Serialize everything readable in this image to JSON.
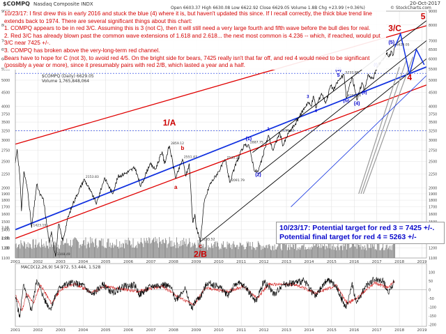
{
  "header": {
    "symbol": "$COMPQ",
    "name": "Nasdaq Composite INDX",
    "date": "20-Oct-2017",
    "source": "© StockCharts.com",
    "ohlc": "Open 6603.37  High 6630.08  Low 6622.92  Close 6629.05  Volume 1.8B  Chg +23.99 (+0.36%)",
    "legend_price": "$COMPQ (Daily) 6629.05",
    "legend_volume": "Volume 1,765,848,064",
    "legend_macd": "MACD(12,26,9) 54.972, 53.444, 1.528"
  },
  "annotation_text": [
    "10/23/17:  I first drew this in early 2016 and stuck the blue (4) where it is, but haven't updated this since.  If I recall correctly, the thick blue trend line extends back to 1974.  There are several significant things about this chart:",
    "1.  COMPQ appears to be in red 3/C.  Assuming this is 3 (not C), then it will still need a very large fourth and fifth wave before the bull dies for real.",
    "2.  Red 3/C has already blown past the common wave extensions of 1.618 and 2.618... the next most common is 4.236 -- which, if reached, would put 3/C near 7425 +/-.",
    "3.  COMPQ has broken above the very-long-term red channel.",
    "Bears have to hope for C (not 3), to avoid red 4/5.  On the bright side for bears, 7425 really isn't that far off, and red 4 would need to be significant (possibly a year or more), since it presumably pairs with red 2/B, which lasted a year and a half."
  ],
  "target_text": [
    "10/23/17:  Potential target for red 3 = 7425 +/-.",
    "Potential final target for red 4 = 5263 +/-"
  ],
  "colors": {
    "price": "#000000",
    "red_label": "#cc0000",
    "blue_label": "#0000cc",
    "red_channel": "#e00000",
    "blue_trend": "#1030e0",
    "black_channel": "#000000",
    "gray_lines": "#9a9a9a",
    "volume": "#8a8a8a",
    "macd": "#000000",
    "macd_signal": "#cc0000"
  },
  "chart_data": [
    {
      "type": "line",
      "title": "",
      "scale": "log",
      "x_range": [
        2001.0,
        2019.2
      ],
      "y_range": [
        1100,
        9000
      ],
      "y_ticks": [
        1100,
        1200,
        1300,
        1400,
        1500,
        1600,
        1700,
        1800,
        1900,
        2000,
        2250,
        2500,
        2750,
        3000,
        3250,
        3500,
        3750,
        4000,
        4500,
        5000,
        5500,
        6000,
        6500,
        7000,
        8000,
        9000
      ],
      "x_ticks": [
        "2001",
        "2002",
        "2003",
        "2004",
        "2005",
        "2006",
        "2007",
        "2008",
        "2009",
        "2010",
        "2011",
        "2012",
        "2013",
        "2014",
        "2015",
        "2016",
        "2017",
        "2018",
        "2019"
      ],
      "grid": true,
      "series": [
        {
          "points": [
            [
              2001.0,
              2470
            ],
            [
              2001.08,
              2780
            ],
            [
              2001.2,
              2200
            ],
            [
              2001.27,
              1640
            ],
            [
              2001.38,
              2300
            ],
            [
              2001.55,
              1950
            ],
            [
              2001.72,
              1423
            ],
            [
              2001.95,
              2060
            ],
            [
              2002.08,
              1900
            ],
            [
              2002.25,
              1800
            ],
            [
              2002.5,
              1250
            ],
            [
              2002.6,
              1380
            ],
            [
              2002.78,
              1114
            ],
            [
              2002.92,
              1470
            ],
            [
              2003.1,
              1270
            ],
            [
              2003.3,
              1520
            ],
            [
              2003.55,
              1750
            ],
            [
              2004.05,
              2153
            ],
            [
              2004.3,
              1960
            ],
            [
              2004.6,
              1750
            ],
            [
              2004.95,
              2180
            ],
            [
              2005.3,
              1900
            ],
            [
              2005.55,
              2200
            ],
            [
              2005.9,
              2270
            ],
            [
              2006.3,
              2370
            ],
            [
              2006.55,
              2020
            ],
            [
              2006.95,
              2450
            ],
            [
              2007.2,
              2340
            ],
            [
              2007.5,
              2724
            ],
            [
              2007.6,
              2450
            ],
            [
              2007.82,
              2861
            ],
            [
              2008.1,
              2170
            ],
            [
              2008.4,
              2550
            ],
            [
              2008.55,
              2210
            ],
            [
              2008.7,
              2450
            ],
            [
              2008.85,
              1490
            ],
            [
              2008.95,
              1600
            ],
            [
              2009.0,
              1440
            ],
            [
              2009.19,
              1266
            ],
            [
              2009.35,
              1750
            ],
            [
              2009.6,
              2050
            ],
            [
              2010.0,
              2300
            ],
            [
              2010.3,
              2535
            ],
            [
              2010.5,
              2091
            ],
            [
              2010.8,
              2500
            ],
            [
              2011.1,
              2840
            ],
            [
              2011.33,
              2887
            ],
            [
              2011.6,
              2300
            ],
            [
              2011.75,
              2298
            ],
            [
              2011.95,
              2600
            ],
            [
              2012.2,
              3130
            ],
            [
              2012.4,
              2750
            ],
            [
              2012.7,
              3196
            ],
            [
              2012.85,
              2860
            ],
            [
              2013.1,
              3200
            ],
            [
              2013.4,
              3450
            ],
            [
              2013.6,
              3700
            ],
            [
              2013.95,
              4150
            ],
            [
              2014.1,
              4000
            ],
            [
              2014.2,
              4370
            ],
            [
              2014.3,
              3950
            ],
            [
              2014.55,
              4480
            ],
            [
              2014.75,
              4130
            ],
            [
              2014.95,
              4780
            ],
            [
              2015.1,
              4630
            ],
            [
              2015.3,
              4980
            ],
            [
              2015.55,
              5232
            ],
            [
              2015.65,
              4292
            ],
            [
              2015.9,
              5150
            ],
            [
              2016.1,
              4400
            ],
            [
              2016.12,
              4210
            ],
            [
              2016.35,
              4900
            ],
            [
              2016.45,
              4600
            ],
            [
              2016.6,
              5200
            ],
            [
              2016.85,
              5050
            ],
            [
              2016.95,
              5450
            ],
            [
              2017.2,
              5900
            ],
            [
              2017.35,
              6050
            ],
            [
              2017.45,
              6350
            ],
            [
              2017.55,
              6100
            ],
            [
              2017.65,
              6400
            ],
            [
              2017.72,
              6180
            ],
            [
              2017.8,
              6629
            ]
          ]
        }
      ]
    },
    {
      "type": "bar",
      "title": "",
      "scale": "linear",
      "y_ticks": [
        1.0,
        2.0,
        3.0
      ],
      "y_tick_labels": [
        "1.0B",
        "2.0B",
        "3.0B"
      ],
      "y_range": [
        0,
        3.6
      ]
    },
    {
      "type": "line",
      "title": "",
      "scale": "linear",
      "y_range": [
        -210,
        150
      ],
      "y_ticks": [
        -200,
        -150,
        -100,
        -50,
        0,
        50,
        100
      ]
    }
  ],
  "wave_labels": [
    {
      "text": "1/A",
      "x": 2007.82,
      "y": 3400,
      "color": "red",
      "size": 12
    },
    {
      "text": "b",
      "x": 2008.4,
      "y": 2760,
      "color": "red",
      "size": 8
    },
    {
      "text": "a",
      "x": 2008.1,
      "y": 1980,
      "color": "red",
      "size": 8
    },
    {
      "text": "c",
      "x": 2009.19,
      "y": 1200,
      "color": "red",
      "size": 8
    },
    {
      "text": "2/B",
      "x": 2009.19,
      "y": 1110,
      "color": "red",
      "size": 12
    },
    {
      "text": "3/C",
      "x": 2017.8,
      "y": 7600,
      "color": "red",
      "size": 12
    },
    {
      "text": "4",
      "x": 2018.45,
      "y": 5000,
      "color": "red",
      "size": 12
    },
    {
      "text": "5",
      "x": 2019.05,
      "y": 8400,
      "color": "red",
      "size": 12
    },
    {
      "text": "(1)",
      "x": 2011.33,
      "y": 3000,
      "color": "blue",
      "size": 7
    },
    {
      "text": "(2)",
      "x": 2011.75,
      "y": 2210,
      "color": "blue",
      "size": 7
    },
    {
      "text": "(3)",
      "x": 2015.3,
      "y": 5400,
      "color": "blue",
      "size": 7
    },
    {
      "text": "5",
      "x": 2015.3,
      "y": 5150,
      "color": "blue",
      "size": 7
    },
    {
      "text": "(4)",
      "x": 2016.12,
      "y": 4050,
      "color": "blue",
      "size": 7
    },
    {
      "text": "(5)",
      "x": 2017.65,
      "y": 6800,
      "color": "blue",
      "size": 7
    },
    {
      "text": "(i)",
      "x": 2016.95,
      "y": 5650,
      "color": "blue",
      "size": 6
    },
    {
      "text": "(ii)",
      "x": 2016.45,
      "y": 4450,
      "color": "blue",
      "size": 6
    },
    {
      "text": "(iv)",
      "x": 2015.65,
      "y": 4150,
      "color": "blue",
      "size": 6
    },
    {
      "text": "1",
      "x": 2012.2,
      "y": 3260,
      "color": "blue",
      "size": 6
    },
    {
      "text": "3",
      "x": 2013.95,
      "y": 4300,
      "color": "blue",
      "size": 6
    },
    {
      "text": "4",
      "x": 2014.3,
      "y": 3800,
      "color": "blue",
      "size": 6
    }
  ],
  "price_labels": [
    {
      "text": "2859.12",
      "x": 2007.82,
      "y": 2861
    },
    {
      "text": "2551.47",
      "x": 2008.4,
      "y": 2550
    },
    {
      "text": "2153.83",
      "x": 2004.05,
      "y": 2153
    },
    {
      "text": "1423.19",
      "x": 2001.72,
      "y": 1423
    },
    {
      "text": "1108.49",
      "x": 2002.78,
      "y": 1114
    },
    {
      "text": "1265.52",
      "x": 2009.19,
      "y": 1266
    },
    {
      "text": "2535.28",
      "x": 2010.3,
      "y": 2535
    },
    {
      "text": "2091.79",
      "x": 2010.5,
      "y": 2091
    },
    {
      "text": "2887.75",
      "x": 2011.33,
      "y": 2887
    },
    {
      "text": "3196.93",
      "x": 2012.7,
      "y": 3196
    },
    {
      "text": "5232.89",
      "x": 2015.55,
      "y": 5232
    },
    {
      "text": "4292.14",
      "x": 2015.65,
      "y": 4292
    },
    {
      "text": "6629.05",
      "x": 2017.8,
      "y": 6629
    }
  ],
  "trend_lines": [
    {
      "color": "red",
      "width": 1.3,
      "from": [
        2001.0,
        1300
      ],
      "to": [
        2019.2,
        4800
      ]
    },
    {
      "color": "red",
      "width": 1.3,
      "from": [
        2001.0,
        2900
      ],
      "to": [
        2019.2,
        7950
      ]
    },
    {
      "color": "blue",
      "width": 1.8,
      "from": [
        2001.0,
        1400
      ],
      "to": [
        2019.2,
        5600
      ]
    },
    {
      "color": "black",
      "width": 0.9,
      "from": [
        2009.2,
        1266
      ],
      "to": [
        2019.2,
        6000
      ]
    },
    {
      "color": "black",
      "width": 0.9,
      "from": [
        2011.5,
        2700
      ],
      "to": [
        2019.2,
        8300
      ]
    },
    {
      "color": "black",
      "width": 0.9,
      "from": [
        2011.75,
        2250
      ],
      "to": [
        2019.2,
        7000
      ]
    },
    {
      "color": "gray",
      "width": 1.2,
      "from": [
        2016.2,
        1900
      ],
      "to": [
        2018.0,
        5600
      ]
    },
    {
      "color": "gray",
      "width": 1.2,
      "from": [
        2016.3,
        1900
      ],
      "to": [
        2018.3,
        5900
      ]
    },
    {
      "color": "gray",
      "width": 1.2,
      "from": [
        2016.4,
        1900
      ],
      "to": [
        2018.6,
        6100
      ]
    },
    {
      "color": "blue",
      "width": 0.8,
      "from": [
        2013.2,
        1700
      ],
      "to": [
        2019.2,
        5200
      ]
    }
  ],
  "projection": {
    "color": "blue",
    "points": [
      [
        2017.8,
        6629
      ],
      [
        2018.05,
        7425
      ],
      [
        2018.45,
        5263
      ],
      [
        2018.75,
        6500
      ],
      [
        2019.1,
        5700
      ]
    ]
  },
  "horizontal_levels": [
    {
      "y": 3250,
      "color": "blue"
    },
    {
      "y": 5300,
      "color": "blue"
    }
  ],
  "macd_points": [
    [
      2001.0,
      -40
    ],
    [
      2001.2,
      -160
    ],
    [
      2001.35,
      30
    ],
    [
      2001.5,
      -40
    ],
    [
      2001.72,
      -120
    ],
    [
      2001.95,
      60
    ],
    [
      2002.3,
      -60
    ],
    [
      2002.55,
      -110
    ],
    [
      2002.8,
      -30
    ],
    [
      2003.0,
      20
    ],
    [
      2003.5,
      40
    ],
    [
      2004.0,
      25
    ],
    [
      2004.4,
      -30
    ],
    [
      2004.9,
      30
    ],
    [
      2005.3,
      -20
    ],
    [
      2005.8,
      20
    ],
    [
      2006.3,
      25
    ],
    [
      2006.5,
      -30
    ],
    [
      2007.0,
      20
    ],
    [
      2007.6,
      30
    ],
    [
      2007.9,
      10
    ],
    [
      2008.1,
      -60
    ],
    [
      2008.5,
      10
    ],
    [
      2008.8,
      -110
    ],
    [
      2009.0,
      -60
    ],
    [
      2009.2,
      -40
    ],
    [
      2009.5,
      40
    ],
    [
      2010.0,
      20
    ],
    [
      2010.4,
      -30
    ],
    [
      2010.8,
      40
    ],
    [
      2011.2,
      15
    ],
    [
      2011.65,
      -70
    ],
    [
      2012.0,
      50
    ],
    [
      2012.5,
      -30
    ],
    [
      2012.8,
      30
    ],
    [
      2013.3,
      40
    ],
    [
      2013.8,
      50
    ],
    [
      2014.3,
      -40
    ],
    [
      2014.8,
      60
    ],
    [
      2015.2,
      20
    ],
    [
      2015.65,
      -110
    ],
    [
      2015.9,
      40
    ],
    [
      2016.1,
      -80
    ],
    [
      2016.5,
      20
    ],
    [
      2016.9,
      60
    ],
    [
      2017.3,
      50
    ],
    [
      2017.5,
      -20
    ],
    [
      2017.8,
      55
    ]
  ],
  "macd_signal_points": [
    [
      2001.0,
      -30
    ],
    [
      2001.3,
      -120
    ],
    [
      2001.5,
      -20
    ],
    [
      2001.8,
      -80
    ],
    [
      2002.1,
      30
    ],
    [
      2002.6,
      -80
    ],
    [
      2003.0,
      0
    ],
    [
      2003.6,
      35
    ],
    [
      2004.4,
      -15
    ],
    [
      2005.0,
      20
    ],
    [
      2006.4,
      -10
    ],
    [
      2007.5,
      20
    ],
    [
      2008.2,
      -40
    ],
    [
      2008.9,
      -90
    ],
    [
      2009.4,
      10
    ],
    [
      2010.4,
      -10
    ],
    [
      2011.1,
      20
    ],
    [
      2011.7,
      -50
    ],
    [
      2012.2,
      30
    ],
    [
      2013.4,
      30
    ],
    [
      2014.3,
      -20
    ],
    [
      2015.2,
      25
    ],
    [
      2015.7,
      -80
    ],
    [
      2016.2,
      -40
    ],
    [
      2016.9,
      40
    ],
    [
      2017.5,
      10
    ],
    [
      2017.8,
      53
    ]
  ]
}
